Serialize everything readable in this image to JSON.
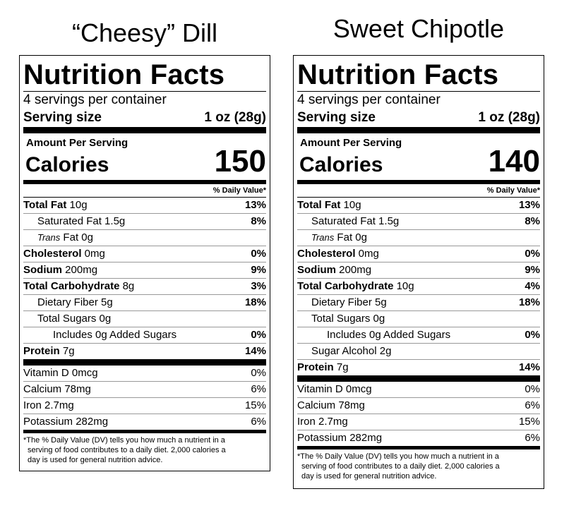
{
  "labels": [
    {
      "product_name": "“Cheesy” Dill",
      "header": "Nutrition Facts",
      "servings_per_container": "4 servings per container",
      "serving_size_label": "Serving size",
      "serving_size_value": "1 oz (28g)",
      "amount_per_serving": "Amount Per Serving",
      "calories_label": "Calories",
      "calories_value": "150",
      "dv_header": "% Daily Value*",
      "nutrients": [
        {
          "bold": "Total Fat",
          "rest": " 10g",
          "pct": "13%"
        },
        {
          "bold": "",
          "rest": "Saturated Fat 1.5g",
          "pct": "8%"
        },
        {
          "italic": "Trans",
          "rest": " Fat 0g",
          "pct": ""
        },
        {
          "bold": "Cholesterol",
          "rest": " 0mg",
          "pct": "0%"
        },
        {
          "bold": "Sodium",
          "rest": " 200mg",
          "pct": "9%"
        },
        {
          "bold": "Total Carbohydrate",
          "rest": " 8g",
          "pct": "3%"
        },
        {
          "bold": "",
          "rest": "Dietary Fiber 5g",
          "pct": "18%"
        },
        {
          "bold": "",
          "rest": "Total Sugars 0g",
          "pct": ""
        },
        {
          "bold": "",
          "rest": "Includes 0g Added Sugars",
          "pct": "0%"
        },
        {
          "bold": "Protein",
          "rest": " 7g",
          "pct": "14%"
        }
      ],
      "vitamins": [
        {
          "label": "Vitamin D 0mcg",
          "pct": "0%"
        },
        {
          "label": "Calcium 78mg",
          "pct": "6%"
        },
        {
          "label": "Iron 2.7mg",
          "pct": "15%"
        },
        {
          "label": "Potassium 282mg",
          "pct": "6%"
        }
      ],
      "footnote_1": "*The % Daily Value (DV) tells you how much a nutrient in a",
      "footnote_2": "serving of food contributes to a daily diet. 2,000 calories a",
      "footnote_3": "day is used for general nutrition advice."
    },
    {
      "product_name": "Sweet Chipotle",
      "header": "Nutrition Facts",
      "servings_per_container": "4 servings per container",
      "serving_size_label": "Serving size",
      "serving_size_value": "1 oz (28g)",
      "amount_per_serving": "Amount Per Serving",
      "calories_label": "Calories",
      "calories_value": "140",
      "dv_header": "% Daily Value*",
      "nutrients": [
        {
          "bold": "Total Fat",
          "rest": " 10g",
          "pct": "13%"
        },
        {
          "bold": "",
          "rest": "Saturated Fat 1.5g",
          "pct": "8%"
        },
        {
          "italic": "Trans",
          "rest": " Fat 0g",
          "pct": ""
        },
        {
          "bold": "Cholesterol",
          "rest": " 0mg",
          "pct": "0%"
        },
        {
          "bold": "Sodium",
          "rest": " 200mg",
          "pct": "9%"
        },
        {
          "bold": "Total Carbohydrate",
          "rest": " 10g",
          "pct": "4%"
        },
        {
          "bold": "",
          "rest": "Dietary Fiber 5g",
          "pct": "18%"
        },
        {
          "bold": "",
          "rest": "Total Sugars 0g",
          "pct": ""
        },
        {
          "bold": "",
          "rest": "Includes 0g Added Sugars",
          "pct": "0%"
        },
        {
          "bold": "",
          "rest": "Sugar Alcohol 2g",
          "pct": ""
        },
        {
          "bold": "Protein",
          "rest": " 7g",
          "pct": "14%"
        }
      ],
      "vitamins": [
        {
          "label": "Vitamin D 0mcg",
          "pct": "0%"
        },
        {
          "label": "Calcium 78mg",
          "pct": "6%"
        },
        {
          "label": "Iron 2.7mg",
          "pct": "15%"
        },
        {
          "label": "Potassium 282mg",
          "pct": "6%"
        }
      ],
      "footnote_1": "*The % Daily Value (DV) tells you how much a nutrient in a",
      "footnote_2": "serving of food contributes to a daily diet. 2,000 calories a",
      "footnote_3": "day is used for general nutrition advice."
    }
  ]
}
